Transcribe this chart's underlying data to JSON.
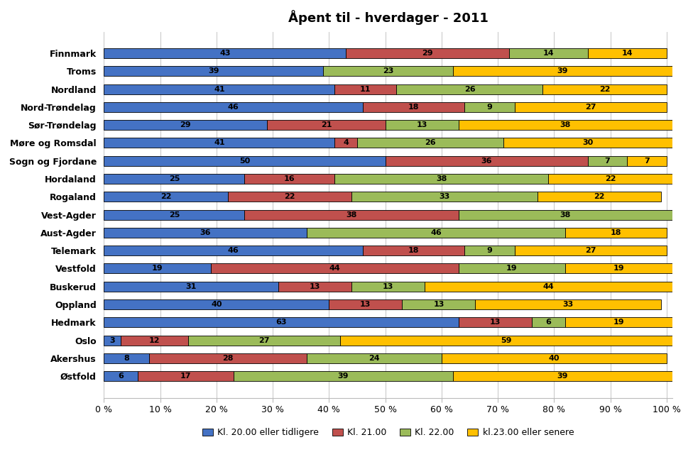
{
  "title": "Åpent til - hverdager - 2011",
  "categories": [
    "Finnmark",
    "Troms",
    "Nordland",
    "Nord-Trøndelag",
    "Sør-Trøndelag",
    "Møre og Romsdal",
    "Sogn og Fjordane",
    "Hordaland",
    "Rogaland",
    "Vest-Agder",
    "Aust-Agder",
    "Telemark",
    "Vestfold",
    "Buskerud",
    "Oppland",
    "Hedmark",
    "Oslo",
    "Akershus",
    "Østfold"
  ],
  "series": {
    "kl2000": [
      43,
      39,
      41,
      46,
      29,
      41,
      50,
      25,
      22,
      25,
      36,
      46,
      19,
      31,
      40,
      63,
      3,
      8,
      6
    ],
    "kl2100": [
      29,
      0,
      11,
      18,
      21,
      4,
      36,
      16,
      22,
      38,
      0,
      18,
      44,
      13,
      13,
      13,
      12,
      28,
      17
    ],
    "kl2200": [
      14,
      23,
      26,
      9,
      13,
      26,
      7,
      38,
      33,
      38,
      46,
      9,
      19,
      13,
      13,
      6,
      27,
      24,
      39
    ],
    "kl2300": [
      14,
      39,
      22,
      27,
      38,
      30,
      7,
      22,
      22,
      0,
      18,
      27,
      19,
      44,
      33,
      19,
      59,
      40,
      39
    ]
  },
  "colors": {
    "kl2000": "#4472C4",
    "kl2100": "#C0504D",
    "kl2200": "#9BBB59",
    "kl2300": "#FFC000"
  },
  "legend_labels": [
    "Kl. 20.00 eller tidligere",
    "Kl. 21.00",
    "Kl. 22.00",
    "kl.23.00 eller senere"
  ],
  "xlabel_ticks": [
    0,
    10,
    20,
    30,
    40,
    50,
    60,
    70,
    80,
    90,
    100
  ],
  "bar_height": 0.55,
  "background_color": "#FFFFFF",
  "title_fontsize": 13,
  "label_fontsize": 8,
  "ytick_fontsize": 9,
  "xtick_fontsize": 9
}
